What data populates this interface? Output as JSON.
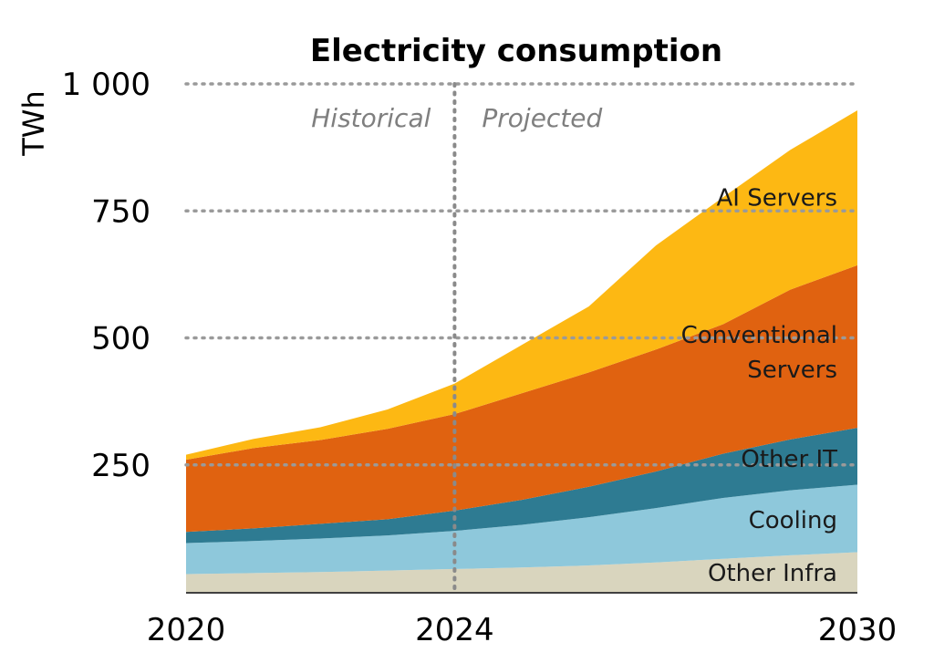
{
  "chart_data": {
    "type": "area",
    "stacked": true,
    "title": "Electricity consumption",
    "ylabel": "TWh",
    "xlabel": "",
    "xlim": [
      2020,
      2030
    ],
    "ylim": [
      0,
      1000
    ],
    "yticks": [
      250,
      500,
      750,
      1000
    ],
    "ytick_labels": [
      "250",
      "500",
      "750",
      "1 000"
    ],
    "xticks": [
      2020,
      2024,
      2030
    ],
    "xtick_labels": [
      "2020",
      "2024",
      "2030"
    ],
    "grid": "horizontal dotted",
    "divider": {
      "x": 2024,
      "left_label": "Historical",
      "right_label": "Projected"
    },
    "x": [
      2020,
      2021,
      2022,
      2023,
      2024,
      2025,
      2026,
      2027,
      2028,
      2029,
      2030
    ],
    "series": [
      {
        "name": "Other Infra",
        "color": "#d9d5be",
        "values": [
          35,
          37,
          39,
          42,
          45,
          48,
          52,
          58,
          65,
          72,
          78
        ]
      },
      {
        "name": "Cooling",
        "color": "#8ec8db",
        "values": [
          61,
          63,
          66,
          69,
          75,
          84,
          95,
          107,
          120,
          128,
          133
        ]
      },
      {
        "name": "Other IT",
        "color": "#2e7b92",
        "values": [
          22,
          25,
          29,
          32,
          40,
          49,
          60,
          72,
          87,
          100,
          112
        ]
      },
      {
        "name": "Conventional Servers",
        "color": "#e06210",
        "values": [
          142,
          158,
          165,
          178,
          190,
          210,
          225,
          240,
          255,
          295,
          320
        ]
      },
      {
        "name": "AI Servers",
        "color": "#fdb813",
        "values": [
          10,
          18,
          25,
          38,
          60,
          95,
          130,
          205,
          250,
          275,
          305
        ]
      }
    ]
  }
}
